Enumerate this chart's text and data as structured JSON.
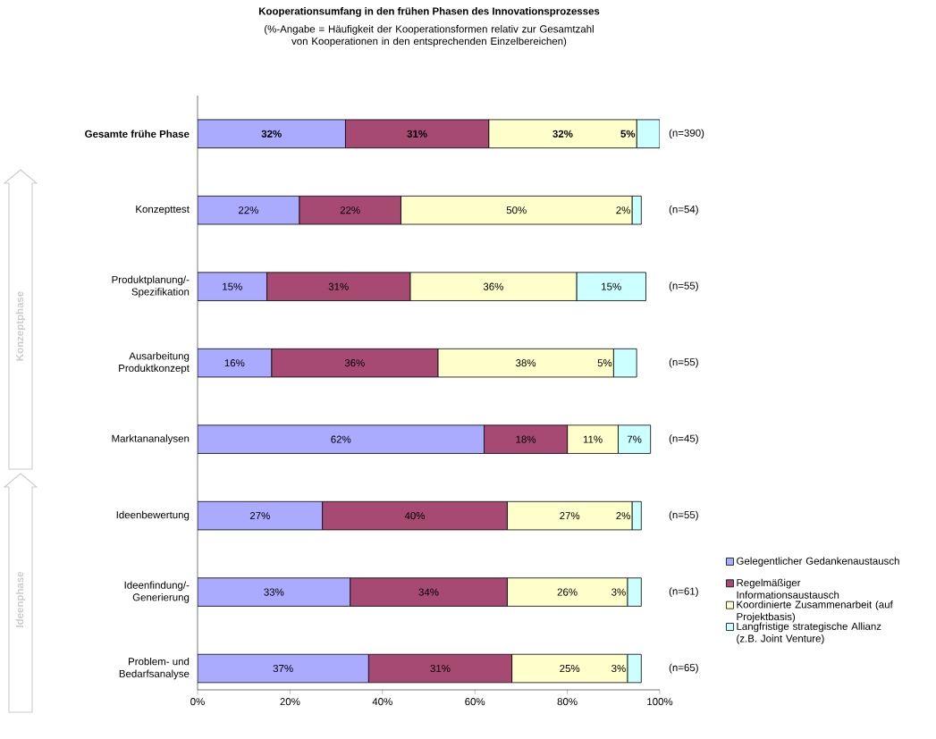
{
  "chart_data": {
    "type": "bar",
    "orientation": "horizontal",
    "stacked": true,
    "title": "Kooperationsumfang in den frühen Phasen des Innovationsprozesses",
    "subtitle": "(%-Angabe = Häufigkeit der Kooperationsformen relativ zur Gesamtzahl von Kooperationen in den entsprechenden Einzelbereichen)",
    "categories": [
      "Gesamte frühe Phase",
      "Konzepttest",
      "Produktplanung/-Spezifikation",
      "Ausarbeitung Produktkonzept",
      "Marktananalysen",
      "Ideenbewertung",
      "Ideenfindung/-Generierung",
      "Problem- und Bedarfsanalyse"
    ],
    "series": [
      {
        "name": "Gelegentlicher Gedankenaustausch",
        "color": "#aaaaff",
        "values": [
          32,
          22,
          15,
          16,
          62,
          27,
          33,
          37
        ],
        "value_labels": [
          "32%",
          "22%",
          "15%",
          "16%",
          "62%",
          "27%",
          "33%",
          "37%"
        ]
      },
      {
        "name": "Regelmäßiger Informationsaustausch",
        "color": "#a64a74",
        "values": [
          31,
          22,
          31,
          36,
          18,
          40,
          34,
          31
        ],
        "value_labels": [
          "31%",
          "22%",
          "31%",
          "36%",
          "18%",
          "40%",
          "34%",
          "31%"
        ]
      },
      {
        "name": "Koordinierte Zusammenarbeit (auf Projektbasis)",
        "color": "#ffffcc",
        "values": [
          32,
          50,
          36,
          38,
          11,
          27,
          26,
          25
        ],
        "value_labels": [
          "32%",
          "50%",
          "36%",
          "38%",
          "11%",
          "27%",
          "26%",
          "25%"
        ]
      },
      {
        "name": "Langfristige strategische Allianz (z.B. Joint Venture)",
        "color": "#ccffff",
        "values": [
          5,
          2,
          15,
          5,
          7,
          2,
          3,
          3
        ],
        "value_labels": [
          "5%",
          "2%",
          "15%",
          "5%",
          "7%",
          "2%",
          "3%",
          "3%"
        ]
      }
    ],
    "xlim": [
      0,
      100
    ],
    "xticks": [
      {
        "value": 0,
        "label": "0%"
      },
      {
        "value": 20,
        "label": "20%"
      },
      {
        "value": 40,
        "label": "40%"
      },
      {
        "value": 60,
        "label": "60%"
      },
      {
        "value": 80,
        "label": "80%"
      },
      {
        "value": 100,
        "label": "100%"
      }
    ],
    "legend": "right",
    "annotations": [
      "(n=390)",
      "(n=54)",
      "(n=55)",
      "(n=55)",
      "(n=45)",
      "(n=55)",
      "(n=61)",
      "(n=65)",
      "Ideenphase",
      "Konzeptphase"
    ]
  }
}
